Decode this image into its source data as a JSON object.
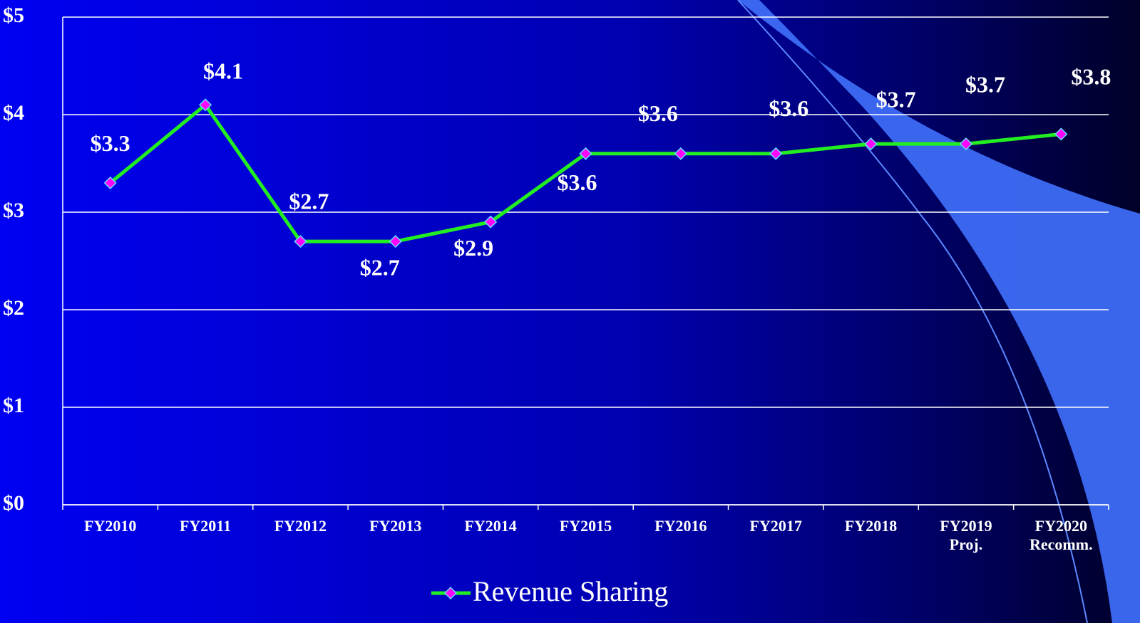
{
  "chart_data": {
    "type": "line",
    "categories": [
      "FY2010",
      "FY2011",
      "FY2012",
      "FY2013",
      "FY2014",
      "FY2015",
      "FY2016",
      "FY2017",
      "FY2018",
      "FY2019\nProj.",
      "FY2020\nRecomm."
    ],
    "series": [
      {
        "name": "Revenue Sharing",
        "color": "#22ee22",
        "marker_color": "#ff00ff",
        "values": [
          3.3,
          4.1,
          2.7,
          2.7,
          2.9,
          3.6,
          3.6,
          3.6,
          3.7,
          3.7,
          3.8
        ],
        "value_labels": [
          "$3.3",
          "$4.1",
          "$2.7",
          "$2.7",
          "$2.9",
          "$3.6",
          "$3.6",
          "$3.6",
          "$3.7",
          "$3.7",
          "$3.8"
        ]
      }
    ],
    "ylim": [
      0,
      5
    ],
    "yticks": [
      {
        "value": 0,
        "label": "$0"
      },
      {
        "value": 1,
        "label": "$1"
      },
      {
        "value": 2,
        "label": "$2"
      },
      {
        "value": 3,
        "label": "$3"
      },
      {
        "value": 4,
        "label": "$4"
      },
      {
        "value": 5,
        "label": "$5"
      }
    ],
    "grid": true,
    "legend": "bottom"
  }
}
